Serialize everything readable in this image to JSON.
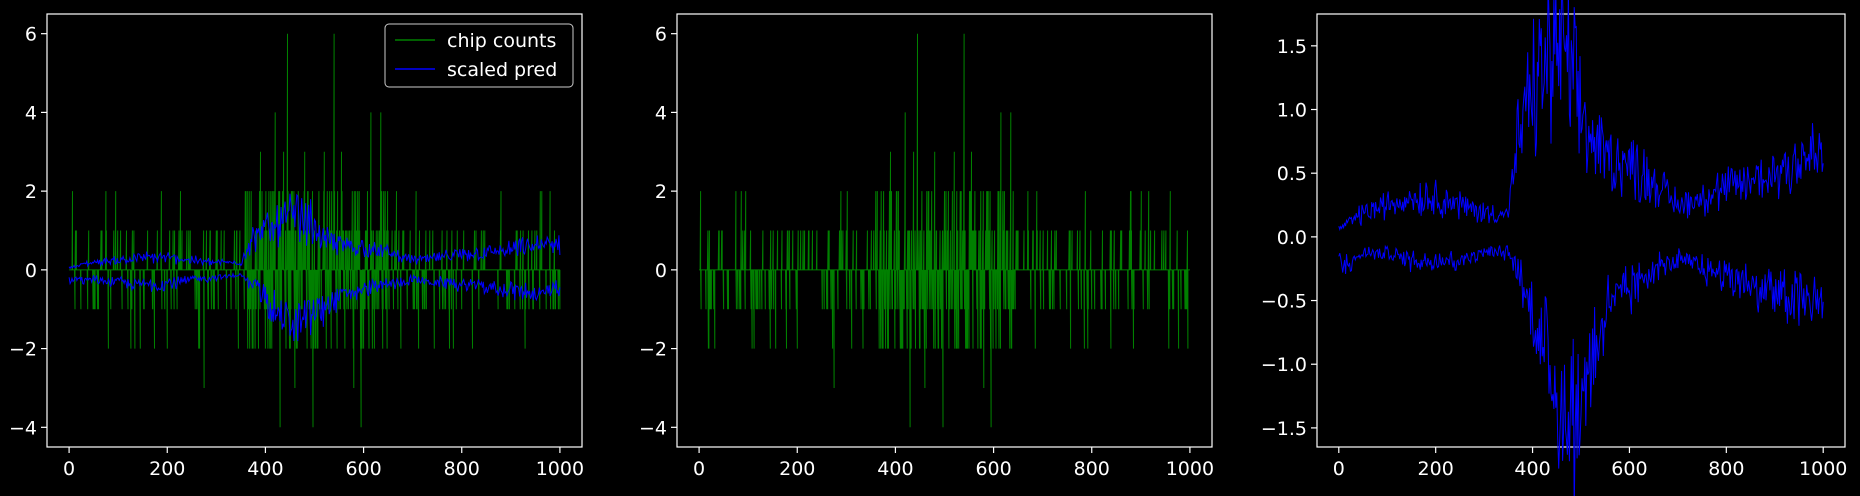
{
  "figure": {
    "background": "#000000",
    "foreground": "#ffffff"
  },
  "chart_data": [
    {
      "type": "line",
      "title": "",
      "xlabel": "",
      "ylabel": "",
      "xlim": [
        -45,
        1045
      ],
      "ylim": [
        -4.5,
        6.5
      ],
      "xticks": [
        0,
        200,
        400,
        600,
        800,
        1000
      ],
      "yticks": [
        -4,
        -2,
        0,
        2,
        4,
        6
      ],
      "legend": {
        "placement": "top-right",
        "entries": [
          "chip counts",
          "scaled pred"
        ]
      },
      "series": [
        {
          "name": "chip counts",
          "color": "#008000",
          "style": "spiky integer counts, symmetric",
          "x": [
            0,
            40,
            60,
            75,
            85,
            95,
            105,
            120,
            145,
            160,
            180,
            200,
            215,
            240,
            260,
            275,
            300,
            330,
            360,
            375,
            390,
            410,
            420,
            430,
            437,
            445,
            460,
            480,
            497,
            520,
            540,
            555,
            580,
            595,
            615,
            635,
            650,
            680,
            720,
            760,
            800,
            840,
            880,
            920,
            960,
            990
          ],
          "values": [
            0,
            1,
            -1,
            2,
            -1,
            2,
            1,
            -1,
            -2,
            1,
            1,
            -2,
            1,
            1,
            -1,
            -3,
            1,
            -1,
            2,
            -2,
            3,
            -2,
            4,
            -4,
            3,
            6,
            -3,
            3,
            -4,
            3,
            6,
            3,
            -3,
            -4,
            4,
            4,
            1,
            1,
            -1,
            1,
            -1,
            1,
            2,
            1,
            2,
            -1
          ]
        },
        {
          "name": "scaled pred",
          "color": "#0000ff",
          "style": "noisy symmetric envelope",
          "x": [
            0,
            50,
            100,
            150,
            200,
            250,
            300,
            350,
            370,
            400,
            430,
            460,
            490,
            520,
            560,
            600,
            650,
            700,
            750,
            800,
            850,
            900,
            950,
            1000
          ],
          "upper": [
            0.05,
            0.15,
            0.2,
            0.25,
            0.25,
            0.2,
            0.15,
            0.15,
            0.6,
            0.8,
            1.0,
            1.1,
            1.0,
            0.6,
            0.5,
            0.45,
            0.35,
            0.2,
            0.25,
            0.3,
            0.35,
            0.4,
            0.5,
            0.5
          ],
          "lower": [
            -0.2,
            -0.2,
            -0.25,
            -0.3,
            -0.3,
            -0.2,
            -0.15,
            -0.1,
            -0.3,
            -0.6,
            -0.9,
            -1.1,
            -1.0,
            -0.8,
            -0.5,
            -0.4,
            -0.3,
            -0.2,
            -0.25,
            -0.3,
            -0.35,
            -0.4,
            -0.45,
            -0.45
          ]
        }
      ]
    },
    {
      "type": "line",
      "title": "",
      "xlabel": "",
      "ylabel": "",
      "xlim": [
        -45,
        1045
      ],
      "ylim": [
        -4.5,
        6.5
      ],
      "xticks": [
        0,
        200,
        400,
        600,
        800,
        1000
      ],
      "yticks": [
        -4,
        -2,
        0,
        2,
        4,
        6
      ],
      "series": [
        {
          "color": "#008000",
          "style": "spiky integer counts, symmetric",
          "x": [
            0,
            40,
            60,
            75,
            85,
            95,
            105,
            120,
            145,
            160,
            180,
            200,
            215,
            240,
            260,
            275,
            300,
            330,
            360,
            375,
            390,
            410,
            420,
            430,
            437,
            445,
            460,
            480,
            497,
            520,
            540,
            555,
            580,
            595,
            615,
            635,
            650,
            680,
            720,
            760,
            800,
            840,
            880,
            920,
            960,
            990
          ],
          "values": [
            0,
            1,
            -1,
            2,
            -1,
            2,
            1,
            -1,
            -2,
            1,
            1,
            -2,
            1,
            1,
            -1,
            -3,
            1,
            -1,
            2,
            -2,
            3,
            -2,
            4,
            -4,
            3,
            6,
            -3,
            3,
            -4,
            3,
            6,
            3,
            -3,
            -4,
            4,
            4,
            1,
            1,
            -1,
            1,
            -1,
            1,
            2,
            1,
            2,
            -1
          ]
        }
      ]
    },
    {
      "type": "line",
      "title": "",
      "xlabel": "",
      "ylabel": "",
      "xlim": [
        -45,
        1045
      ],
      "ylim": [
        -1.65,
        1.75
      ],
      "xticks": [
        0,
        200,
        400,
        600,
        800,
        1000
      ],
      "yticks": [
        -1.5,
        -1.0,
        -0.5,
        0.0,
        0.5,
        1.0,
        1.5
      ],
      "series": [
        {
          "color": "#0000ff",
          "style": "noisy symmetric envelope",
          "x": [
            0,
            50,
            100,
            150,
            200,
            250,
            300,
            350,
            370,
            400,
            430,
            460,
            490,
            520,
            560,
            600,
            650,
            700,
            750,
            800,
            850,
            900,
            950,
            1000
          ],
          "upper": [
            0.05,
            0.15,
            0.2,
            0.25,
            0.25,
            0.2,
            0.15,
            0.15,
            0.6,
            0.9,
            1.1,
            1.2,
            0.9,
            0.6,
            0.5,
            0.45,
            0.35,
            0.2,
            0.25,
            0.3,
            0.35,
            0.4,
            0.5,
            0.5
          ],
          "lower": [
            -0.2,
            -0.1,
            -0.1,
            -0.15,
            -0.15,
            -0.15,
            -0.1,
            -0.1,
            -0.2,
            -0.5,
            -0.8,
            -1.1,
            -1.2,
            -0.8,
            -0.4,
            -0.35,
            -0.2,
            -0.15,
            -0.2,
            -0.25,
            -0.3,
            -0.35,
            -0.4,
            -0.4
          ]
        }
      ]
    }
  ]
}
